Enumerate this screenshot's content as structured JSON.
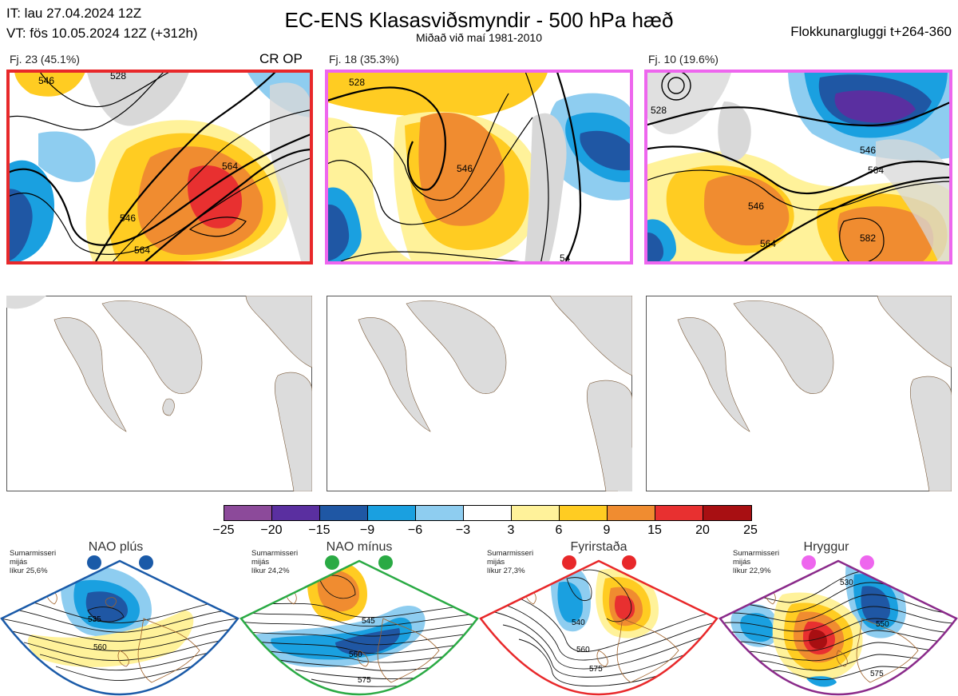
{
  "header": {
    "init_time": "IT: lau 27.04.2024 12Z",
    "valid_time": "VT: fös 10.05.2024 12Z  (+312h)",
    "title": "EC-ENS Klasasviðsmyndir - 500 hPa hæð",
    "subtitle": "Miðað við maí 1981-2010",
    "window": "Flokkunargluggi t+264-360"
  },
  "clusters": [
    {
      "label": "Fj. 23 (45.1%)",
      "extra": "CR OP",
      "frame_color": "#e8282a",
      "contours": [
        "546",
        "564",
        "546",
        "564",
        "528"
      ]
    },
    {
      "label": "Fj. 18 (35.3%)",
      "extra": "",
      "frame_color": "#ee66ee",
      "contours": [
        "528",
        "546",
        "54"
      ]
    },
    {
      "label": "Fj. 10 (19.6%)",
      "extra": "",
      "frame_color": "#ee66ee",
      "contours": [
        "528",
        "546",
        "564",
        "546",
        "564",
        "582"
      ]
    }
  ],
  "colorbar": {
    "colors": [
      "#8c4a9a",
      "#5a2fa0",
      "#1f57a4",
      "#1aa0e0",
      "#8ecdf0",
      "#ffffff",
      "#fff29a",
      "#ffcc22",
      "#f08c30",
      "#e83030",
      "#a80f12"
    ],
    "ticks": [
      "−25",
      "−20",
      "−15",
      "−9",
      "−6",
      "−3",
      "3",
      "6",
      "9",
      "15",
      "20",
      "25"
    ]
  },
  "regimes": [
    {
      "name": "NAO plús",
      "info": [
        "Sumarmisseri",
        "mijás",
        "líkur 25,6%"
      ],
      "color": "#1a5aa8",
      "contours": [
        "535",
        "560"
      ]
    },
    {
      "name": "NAO mínus",
      "info": [
        "Sumarmisseri",
        "mijás",
        "líkur 24,2%"
      ],
      "color": "#2aaa44",
      "contours": [
        "545",
        "560",
        "575"
      ]
    },
    {
      "name": "Fyrirstaða",
      "info": [
        "Sumarmisseri",
        "mijás",
        "líkur 27,3%"
      ],
      "color": "#e8282a",
      "contours": [
        "540",
        "560",
        "575"
      ]
    },
    {
      "name": "Hryggur",
      "info": [
        "Sumarmisseri",
        "mijás",
        "líkur 22,9%"
      ],
      "color": "#ee66ee",
      "contours": [
        "530",
        "550",
        "575"
      ]
    }
  ]
}
